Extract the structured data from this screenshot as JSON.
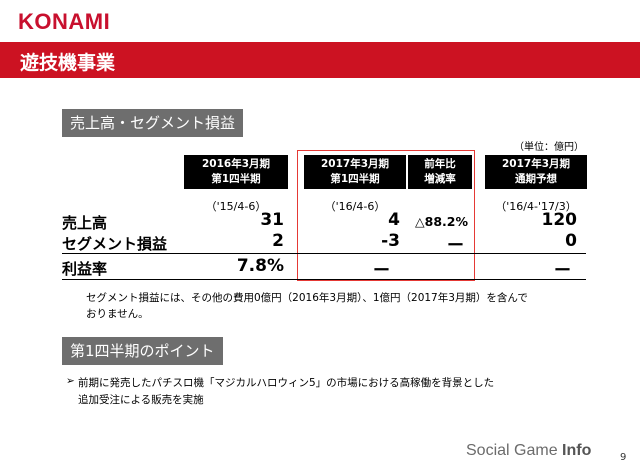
{
  "brand": {
    "logo": "KONAMI"
  },
  "header": {
    "title": "遊技機事業"
  },
  "section1": {
    "title": "売上高・セグメント損益",
    "unit": "（単位：億円）",
    "columns": [
      {
        "label": "2016年3月期\n第1四半期",
        "period": "（'15/4-6）"
      },
      {
        "label": "2017年3月期\n第1四半期",
        "period": "（'16/4-6）"
      },
      {
        "label": "前年比\n増減率",
        "period": ""
      },
      {
        "label": "2017年3月期\n通期予想",
        "period": "（'16/4-'17/3）"
      }
    ],
    "rows": [
      {
        "label": "売上高",
        "values": [
          "31",
          "4",
          "△88.2%",
          "120"
        ]
      },
      {
        "label": "セグメント損益",
        "values": [
          "2",
          "-3",
          "ー",
          "0"
        ]
      },
      {
        "label": "利益率",
        "values": [
          "7.8%",
          "ー",
          "",
          "ー"
        ]
      }
    ],
    "note": "セグメント損益には、その他の費用0億円（2016年3月期）、1億円（2017年3月期）を含んで\nおりません。"
  },
  "section2": {
    "title": "第1四半期のポイント",
    "bullet_mark": "➢",
    "bullet": "前期に発売したパチスロ機「マジカルハロウィン5」の市場における高稼働を背景とした\n追加受注による販売を実施"
  },
  "footer": {
    "watermark_left": "Social Game ",
    "watermark_right": "Info",
    "page_number": "9"
  },
  "colors": {
    "brand_red": "#cc1222",
    "section_gray": "#6e6e6e",
    "highlight": "#e53935"
  }
}
